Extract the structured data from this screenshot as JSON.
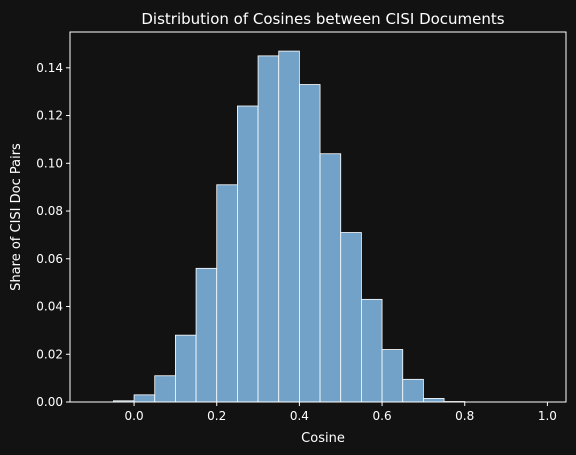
{
  "colors": {
    "background": "#121212",
    "bar_fill": "#72a2c8",
    "bar_edge": "#ffffff",
    "axis": "#ffffff",
    "text": "#ffffff"
  },
  "chart_data": {
    "type": "bar",
    "title": "Distribution of Cosines between CISI Documents",
    "xlabel": "Cosine",
    "ylabel": "Share of CISI Doc Pairs",
    "xlim": [
      -0.155,
      1.045
    ],
    "ylim": [
      0,
      0.155
    ],
    "grid": false,
    "bin_width": 0.05,
    "xticks": [
      0.0,
      0.2,
      0.4,
      0.6,
      0.8,
      1.0
    ],
    "xtick_labels": [
      "0.0",
      "0.2",
      "0.4",
      "0.6",
      "0.8",
      "1.0"
    ],
    "yticks": [
      0.0,
      0.02,
      0.04,
      0.06,
      0.08,
      0.1,
      0.12,
      0.14
    ],
    "ytick_labels": [
      "0.00",
      "0.02",
      "0.04",
      "0.06",
      "0.08",
      "0.10",
      "0.12",
      "0.14"
    ],
    "bins": [
      {
        "x": -0.05,
        "value": 0.0005
      },
      {
        "x": 0.0,
        "value": 0.003
      },
      {
        "x": 0.05,
        "value": 0.011
      },
      {
        "x": 0.1,
        "value": 0.028
      },
      {
        "x": 0.15,
        "value": 0.056
      },
      {
        "x": 0.2,
        "value": 0.091
      },
      {
        "x": 0.25,
        "value": 0.124
      },
      {
        "x": 0.3,
        "value": 0.145
      },
      {
        "x": 0.35,
        "value": 0.147
      },
      {
        "x": 0.4,
        "value": 0.133
      },
      {
        "x": 0.45,
        "value": 0.104
      },
      {
        "x": 0.5,
        "value": 0.071
      },
      {
        "x": 0.55,
        "value": 0.043
      },
      {
        "x": 0.6,
        "value": 0.022
      },
      {
        "x": 0.65,
        "value": 0.0095
      },
      {
        "x": 0.7,
        "value": 0.0015
      },
      {
        "x": 0.75,
        "value": 0.0002
      }
    ]
  }
}
